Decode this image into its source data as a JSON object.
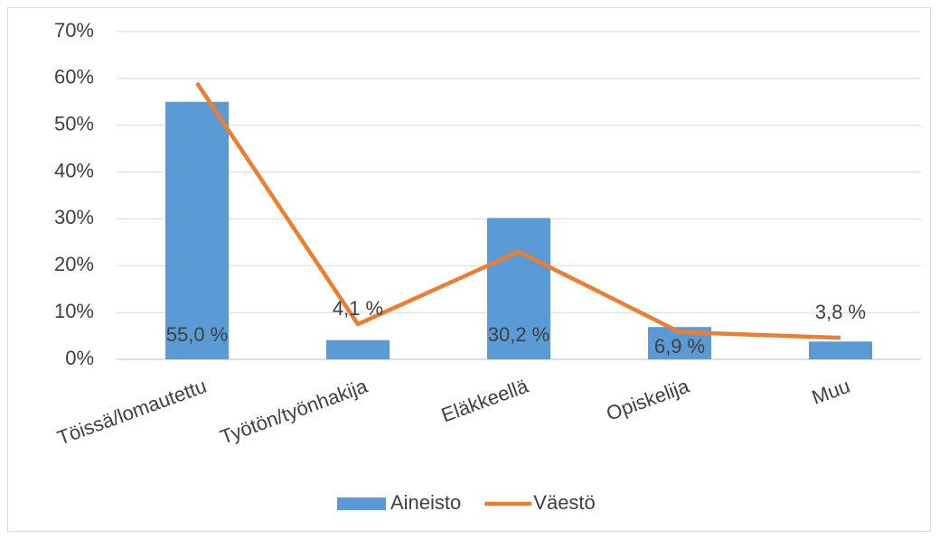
{
  "chart_data": {
    "type": "bar",
    "categories": [
      "Töissä/lomautettu",
      "Työtön/työnhakija",
      "Eläkkeellä",
      "Opiskelija",
      "Muu"
    ],
    "series": [
      {
        "name": "Aineisto",
        "type": "bar",
        "color": "#5b9bd5",
        "values": [
          55.0,
          4.1,
          30.2,
          6.9,
          3.8
        ],
        "value_labels": [
          "55,0 %",
          "4,1 %",
          "30,2 %",
          "6,9 %",
          "3,8 %"
        ]
      },
      {
        "name": "Väestö",
        "type": "line",
        "color": "#ed7d31",
        "values": [
          59,
          7.5,
          23,
          5.8,
          4.6
        ]
      }
    ],
    "ylim": [
      0,
      70
    ],
    "yticks": [
      {
        "value": 0,
        "label": "0%"
      },
      {
        "value": 10,
        "label": "10%"
      },
      {
        "value": 20,
        "label": "20%"
      },
      {
        "value": 30,
        "label": "30%"
      },
      {
        "value": 40,
        "label": "40%"
      },
      {
        "value": 50,
        "label": "50%"
      },
      {
        "value": 60,
        "label": "60%"
      },
      {
        "value": 70,
        "label": "70%"
      }
    ],
    "grid": true,
    "legend": "bottom"
  }
}
